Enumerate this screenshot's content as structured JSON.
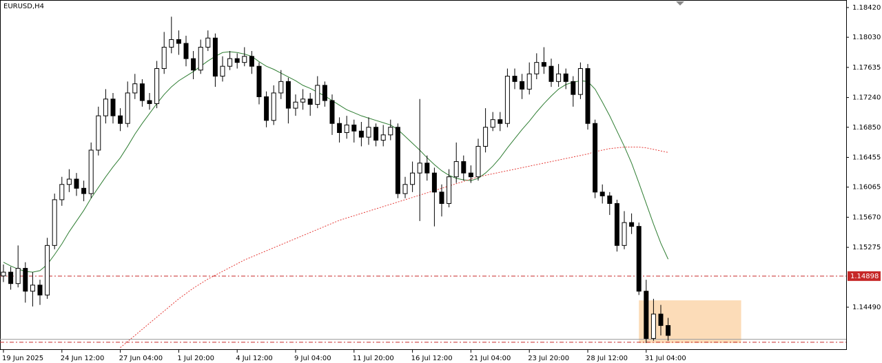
{
  "chart_data": {
    "type": "candlestick",
    "title": "EURUSD,H4",
    "categories": [
      "19 Jun 2025",
      null,
      null,
      null,
      null,
      null,
      null,
      null,
      "24 Jun 12:00",
      null,
      null,
      null,
      null,
      null,
      null,
      null,
      "27 Jun 04:00",
      null,
      null,
      null,
      null,
      null,
      null,
      null,
      "1 Jul 20:00",
      null,
      null,
      null,
      null,
      null,
      null,
      null,
      "4 Jul 12:00",
      null,
      null,
      null,
      null,
      null,
      null,
      null,
      "9 Jul 04:00",
      null,
      null,
      null,
      null,
      null,
      null,
      null,
      "11 Jul 20:00",
      null,
      null,
      null,
      null,
      null,
      null,
      null,
      "16 Jul 12:00",
      null,
      null,
      null,
      null,
      null,
      null,
      null,
      "21 Jul 04:00",
      null,
      null,
      null,
      null,
      null,
      null,
      null,
      "23 Jul 20:00",
      null,
      null,
      null,
      null,
      null,
      null,
      null,
      "28 Jul 12:00",
      null,
      null,
      null,
      null,
      null,
      null,
      null,
      "31 Jul 04:00",
      null,
      null,
      null
    ],
    "open": [
      1.149,
      1.1495,
      1.148,
      1.15,
      1.147,
      1.1478,
      1.1465,
      1.153,
      1.159,
      1.161,
      1.1617,
      1.1605,
      1.1598,
      1.1655,
      1.17,
      1.1722,
      1.17,
      1.169,
      1.173,
      1.1742,
      1.172,
      1.1716,
      1.1762,
      1.179,
      1.18,
      1.1795,
      1.1775,
      1.176,
      1.179,
      1.1802,
      1.1752,
      1.1765,
      1.1775,
      1.177,
      1.1778,
      1.1765,
      1.1725,
      1.1694,
      1.173,
      1.1745,
      1.171,
      1.1718,
      1.1722,
      1.1715,
      1.174,
      1.172,
      1.169,
      1.1678,
      1.1688,
      1.168,
      1.1672,
      1.1685,
      1.1668,
      1.1675,
      1.1685,
      1.1598,
      1.161,
      1.1625,
      1.1638,
      1.1625,
      1.16,
      1.1585,
      1.162,
      1.164,
      1.1625,
      1.162,
      1.166,
      1.1685,
      1.1695,
      1.169,
      1.1752,
      1.1745,
      1.1735,
      1.1755,
      1.177,
      1.1765,
      1.1745,
      1.1755,
      1.1745,
      1.1728,
      1.1762,
      1.169,
      1.16,
      1.1595,
      1.1585,
      1.153,
      1.156,
      1.1555,
      1.147,
      1.1408,
      1.144,
      1.1425
    ],
    "high": [
      1.1505,
      1.1502,
      1.153,
      1.1508,
      1.1495,
      1.1485,
      1.154,
      1.1598,
      1.162,
      1.163,
      1.1625,
      1.1615,
      1.1665,
      1.1712,
      1.1735,
      1.173,
      1.171,
      1.1745,
      1.1755,
      1.1748,
      1.173,
      1.1772,
      1.181,
      1.183,
      1.1812,
      1.1805,
      1.1785,
      1.18,
      1.1812,
      1.1808,
      1.1778,
      1.1785,
      1.1782,
      1.179,
      1.1785,
      1.177,
      1.1732,
      1.174,
      1.176,
      1.175,
      1.1728,
      1.1735,
      1.173,
      1.1752,
      1.1745,
      1.1728,
      1.1698,
      1.17,
      1.1695,
      1.1692,
      1.1698,
      1.169,
      1.1688,
      1.1695,
      1.169,
      1.162,
      1.164,
      1.1722,
      1.1648,
      1.1632,
      1.161,
      1.163,
      1.1665,
      1.1648,
      1.1635,
      1.167,
      1.171,
      1.1705,
      1.1705,
      1.1762,
      1.1762,
      1.1755,
      1.177,
      1.1782,
      1.179,
      1.1775,
      1.1768,
      1.1762,
      1.1752,
      1.177,
      1.1768,
      1.1695,
      1.161,
      1.16,
      1.159,
      1.1575,
      1.1572,
      1.156,
      1.1485,
      1.146,
      1.1452,
      1.1435
    ],
    "low": [
      1.1482,
      1.1472,
      1.1475,
      1.1455,
      1.145,
      1.1452,
      1.146,
      1.1525,
      1.1582,
      1.16,
      1.1595,
      1.1588,
      1.1592,
      1.1648,
      1.169,
      1.169,
      1.168,
      1.1685,
      1.1722,
      1.1712,
      1.1708,
      1.171,
      1.1755,
      1.1782,
      1.178,
      1.1765,
      1.1748,
      1.1755,
      1.1785,
      1.1738,
      1.1745,
      1.176,
      1.1762,
      1.1765,
      1.1755,
      1.1715,
      1.1685,
      1.1688,
      1.1722,
      1.169,
      1.17,
      1.1708,
      1.17,
      1.171,
      1.1712,
      1.1675,
      1.1665,
      1.167,
      1.1665,
      1.166,
      1.1662,
      1.166,
      1.166,
      1.1668,
      1.1592,
      1.1592,
      1.16,
      1.1562,
      1.1615,
      1.1555,
      1.1568,
      1.158,
      1.1612,
      1.1615,
      1.1612,
      1.1615,
      1.1652,
      1.168,
      1.168,
      1.1685,
      1.1735,
      1.1722,
      1.1728,
      1.1748,
      1.1755,
      1.1738,
      1.1738,
      1.1735,
      1.1712,
      1.1722,
      1.1682,
      1.1592,
      1.1585,
      1.157,
      1.1522,
      1.1525,
      1.1545,
      1.1465,
      1.1402,
      1.1405,
      1.1412,
      1.1405
    ],
    "close": [
      1.1495,
      1.148,
      1.15,
      1.147,
      1.1478,
      1.1465,
      1.153,
      1.159,
      1.161,
      1.1617,
      1.1605,
      1.1598,
      1.1655,
      1.17,
      1.1722,
      1.17,
      1.169,
      1.173,
      1.1742,
      1.172,
      1.1716,
      1.1762,
      1.179,
      1.18,
      1.1795,
      1.1775,
      1.176,
      1.179,
      1.1802,
      1.1752,
      1.1765,
      1.1775,
      1.177,
      1.1778,
      1.1765,
      1.1725,
      1.1694,
      1.173,
      1.1745,
      1.171,
      1.1718,
      1.1722,
      1.1715,
      1.174,
      1.172,
      1.169,
      1.1678,
      1.1688,
      1.168,
      1.1672,
      1.1685,
      1.1668,
      1.1675,
      1.1685,
      1.1598,
      1.161,
      1.1625,
      1.1638,
      1.1625,
      1.16,
      1.1585,
      1.162,
      1.164,
      1.1625,
      1.162,
      1.166,
      1.1685,
      1.1695,
      1.169,
      1.1752,
      1.1745,
      1.1735,
      1.1755,
      1.177,
      1.1765,
      1.1745,
      1.1755,
      1.1745,
      1.1728,
      1.1762,
      1.169,
      1.16,
      1.1595,
      1.1585,
      1.153,
      1.156,
      1.1555,
      1.147,
      1.1408,
      1.144,
      1.1425,
      1.1412
    ],
    "series": [
      {
        "color": "#2e7d32",
        "style": "solid",
        "values": [
          1.1508,
          1.1503,
          1.1499,
          1.1496,
          1.1495,
          1.1497,
          1.1505,
          1.1518,
          1.1532,
          1.1548,
          1.1562,
          1.1576,
          1.1592,
          1.1606,
          1.162,
          1.1633,
          1.1645,
          1.166,
          1.1676,
          1.169,
          1.1703,
          1.1716,
          1.1728,
          1.1738,
          1.1746,
          1.1752,
          1.1758,
          1.1765,
          1.1772,
          1.1778,
          1.1783,
          1.1784,
          1.1783,
          1.1781,
          1.1778,
          1.1771,
          1.1765,
          1.1761,
          1.1756,
          1.1751,
          1.1746,
          1.174,
          1.1736,
          1.1731,
          1.1726,
          1.172,
          1.1714,
          1.1708,
          1.1704,
          1.17,
          1.1697,
          1.1694,
          1.1691,
          1.1688,
          1.1682,
          1.1673,
          1.1664,
          1.1655,
          1.1645,
          1.1636,
          1.1628,
          1.1622,
          1.1618,
          1.1616,
          1.1615,
          1.1618,
          1.1625,
          1.1634,
          1.1645,
          1.1658,
          1.167,
          1.1682,
          1.1693,
          1.1705,
          1.1716,
          1.1726,
          1.1735,
          1.1741,
          1.1744,
          1.1746,
          1.1745,
          1.1735,
          1.1718,
          1.17,
          1.168,
          1.166,
          1.1638,
          1.1612,
          1.1585,
          1.1558,
          1.1533,
          1.1512
        ]
      },
      {
        "color": "#e53935",
        "style": "dotted",
        "values": [
          null,
          null,
          null,
          null,
          null,
          null,
          null,
          null,
          null,
          null,
          null,
          null,
          null,
          null,
          null,
          null,
          1.1396,
          1.1404,
          1.1412,
          1.142,
          1.1428,
          1.1436,
          1.1444,
          1.1452,
          1.146,
          1.1467,
          1.1474,
          1.148,
          1.1486,
          1.1491,
          1.1496,
          1.1501,
          1.1506,
          1.1511,
          1.1515,
          1.1519,
          1.1523,
          1.1527,
          1.1531,
          1.1535,
          1.1539,
          1.1543,
          1.1547,
          1.1551,
          1.1555,
          1.1559,
          1.1563,
          1.1566,
          1.1569,
          1.1572,
          1.1575,
          1.1578,
          1.1581,
          1.1584,
          1.1587,
          1.159,
          1.1593,
          1.1596,
          1.1599,
          1.1602,
          1.1605,
          1.1608,
          1.1611,
          1.1614,
          1.1617,
          1.162,
          1.1622,
          1.1624,
          1.1626,
          1.1628,
          1.163,
          1.1632,
          1.1634,
          1.1636,
          1.1638,
          1.164,
          1.1642,
          1.1644,
          1.1646,
          1.1648,
          1.165,
          1.1653,
          1.1655,
          1.1657,
          1.1658,
          1.1659,
          1.1659,
          1.1659,
          1.1658,
          1.1656,
          1.1654,
          1.1652
        ]
      }
    ],
    "levels": [
      {
        "value": 1.14898,
        "color": "#c62828",
        "style": "dashdot",
        "labeled": true
      },
      {
        "value": 1.1403,
        "color": "#c62828",
        "style": "dashdot",
        "labeled": false
      },
      {
        "value": 1.1407,
        "color": "#9e9e9e",
        "style": "solid",
        "labeled": false
      }
    ],
    "zone": {
      "from": 87,
      "to": 101,
      "ymin": 1.1402,
      "ymax": 1.1458,
      "color": "#fcdcb8"
    },
    "ylim": [
      1.1393,
      1.18519
    ],
    "yticks": [
      {
        "value": 1.1842,
        "label": "1.18420"
      },
      {
        "value": 1.1803,
        "label": "1.18030"
      },
      1.17635,
      {
        "value": 1.1724,
        "label": "1.17240"
      },
      {
        "value": 1.1685,
        "label": "1.16850"
      },
      1.16455,
      1.16065,
      {
        "value": 1.1567,
        "label": "1.15670"
      },
      1.15275,
      {
        "value": 1.1449,
        "label": "1.14490"
      }
    ]
  }
}
